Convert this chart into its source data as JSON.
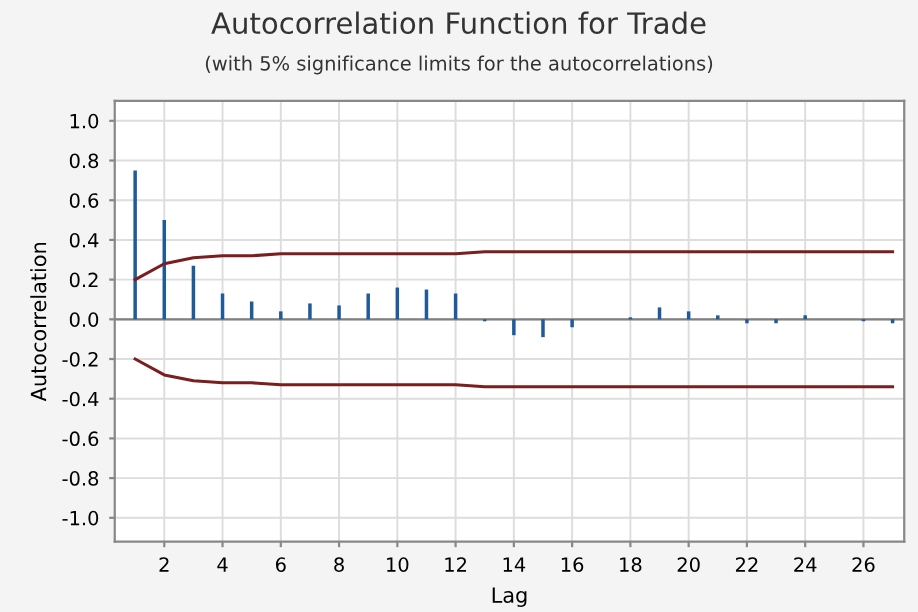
{
  "chart_data": {
    "type": "bar",
    "title": "Autocorrelation Function for Trade",
    "subtitle": "(with 5% significance limits for the autocorrelations)",
    "xlabel": "Lag",
    "ylabel": "Autocorrelation",
    "x": [
      1,
      2,
      3,
      4,
      5,
      6,
      7,
      8,
      9,
      10,
      11,
      12,
      13,
      14,
      15,
      16,
      17,
      18,
      19,
      20,
      21,
      22,
      23,
      24,
      25,
      26,
      27
    ],
    "series": [
      {
        "color": "#1f5a9a",
        "values": [
          0.75,
          0.5,
          0.27,
          0.13,
          0.09,
          0.04,
          0.08,
          0.07,
          0.13,
          0.16,
          0.15,
          0.13,
          -0.01,
          -0.08,
          -0.09,
          -0.04,
          0.0,
          0.01,
          0.06,
          0.04,
          0.02,
          -0.02,
          -0.02,
          0.02,
          0.0,
          -0.01,
          -0.02
        ]
      },
      {
        "type": "line",
        "color": "#7a1f1f",
        "values": [
          0.2,
          0.28,
          0.31,
          0.32,
          0.32,
          0.33,
          0.33,
          0.33,
          0.33,
          0.33,
          0.33,
          0.33,
          0.34,
          0.34,
          0.34,
          0.34,
          0.34,
          0.34,
          0.34,
          0.34,
          0.34,
          0.34,
          0.34,
          0.34,
          0.34,
          0.34,
          0.34
        ]
      },
      {
        "type": "line",
        "color": "#7a1f1f",
        "values": [
          -0.2,
          -0.28,
          -0.31,
          -0.32,
          -0.32,
          -0.33,
          -0.33,
          -0.33,
          -0.33,
          -0.33,
          -0.33,
          -0.33,
          -0.34,
          -0.34,
          -0.34,
          -0.34,
          -0.34,
          -0.34,
          -0.34,
          -0.34,
          -0.34,
          -0.34,
          -0.34,
          -0.34,
          -0.34,
          -0.34,
          -0.34
        ]
      }
    ],
    "xlim": [
      0.3,
      27.4
    ],
    "xticks": [
      2,
      4,
      6,
      8,
      10,
      12,
      14,
      16,
      18,
      20,
      22,
      24,
      26
    ],
    "ylim": [
      -1.12,
      1.1
    ],
    "yticks": [
      {
        "value": -1.0,
        "label": "-1.0"
      },
      {
        "value": -0.8,
        "label": "-0.8"
      },
      {
        "value": -0.6,
        "label": "-0.6"
      },
      {
        "value": -0.4,
        "label": "-0.4"
      },
      {
        "value": -0.2,
        "label": "-0.2"
      },
      {
        "value": 0.0,
        "label": "0.0"
      },
      {
        "value": 0.2,
        "label": "0.2"
      },
      {
        "value": 0.4,
        "label": "0.4"
      },
      {
        "value": 0.6,
        "label": "0.6"
      },
      {
        "value": 0.8,
        "label": "0.8"
      },
      {
        "value": 1.0,
        "label": "1.0"
      }
    ],
    "grid": true
  }
}
